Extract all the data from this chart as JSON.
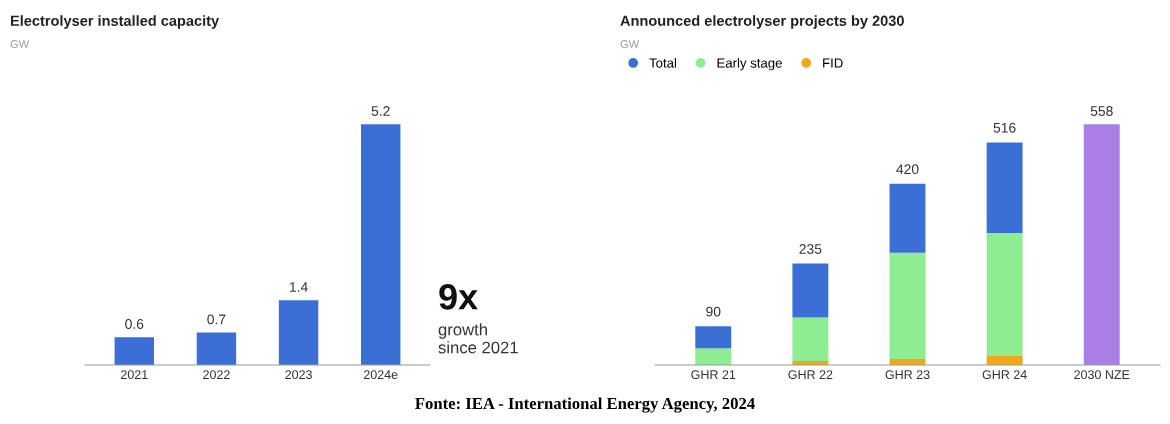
{
  "chart_data": [
    {
      "type": "bar",
      "title": "Electrolyser installed capacity",
      "subtitle": "GW",
      "categories": [
        "2021",
        "2022",
        "2023",
        "2024e"
      ],
      "values": [
        0.6,
        0.7,
        1.4,
        5.2
      ],
      "color": "#3b6fd6",
      "data_labels": true,
      "tick_labels": "x",
      "grid": false,
      "legend": false,
      "annotations": [
        "9x",
        "growth\nsince 2021"
      ]
    },
    {
      "type": "bar",
      "title": "Announced electrolyser projects by 2030",
      "subtitle": "GW",
      "categories": [
        "GHR 21",
        "GHR 22",
        "GHR 23",
        "GHR 24",
        "2030 NZE"
      ],
      "stacked": true,
      "tick_labels": "x",
      "grid": false,
      "legend": "top left",
      "series": [
        {
          "name": "FID",
          "color": "#f0a81a",
          "values": [
            0,
            9,
            14,
            21,
            null
          ]
        },
        {
          "name": "Early stage",
          "color": "#8eec92",
          "values": [
            39,
            101,
            246,
            285,
            null
          ]
        },
        {
          "name": "Total",
          "color": "#3b6fd6",
          "values": [
            51,
            125,
            160,
            210,
            null
          ]
        },
        {
          "color": "#a97fe6",
          "values": [
            null,
            null,
            null,
            null,
            558
          ],
          "value_labels": [
            null,
            null,
            null,
            null,
            "558"
          ]
        }
      ],
      "totals": [
        "90",
        "235",
        "420",
        "516",
        null
      ],
      "annotations": [
        "Fonte: IEA - International Energy Agency, 2024"
      ]
    }
  ]
}
